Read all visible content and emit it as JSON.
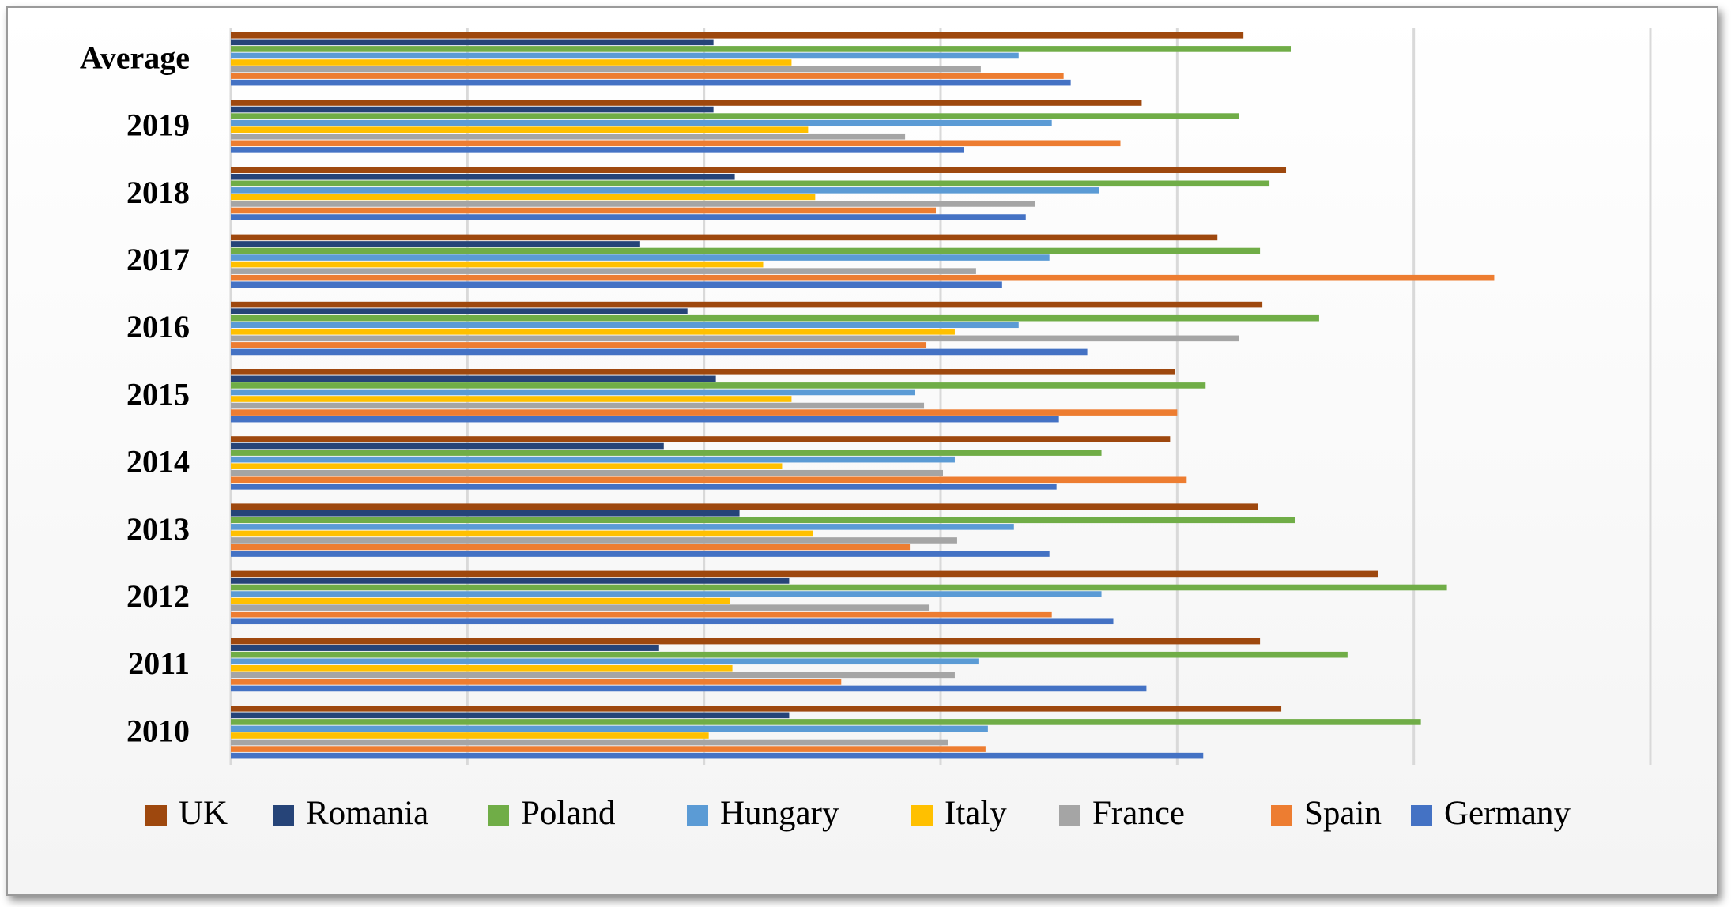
{
  "chart_data": {
    "type": "bar",
    "orientation": "horizontal",
    "title": "",
    "xlabel": "",
    "ylabel": "",
    "xlim": [
      0,
      6
    ],
    "grid": true,
    "legend_position": "bottom",
    "categories": [
      "Average",
      "2019",
      "2018",
      "2017",
      "2016",
      "2015",
      "2014",
      "2013",
      "2012",
      "2011",
      "2010"
    ],
    "series": [
      {
        "name": "UK",
        "color": "#9E480E",
        "values": [
          4.28,
          3.85,
          4.46,
          4.17,
          4.36,
          3.99,
          3.97,
          4.34,
          4.85,
          4.35,
          4.44
        ]
      },
      {
        "name": "Romania",
        "color": "#264478",
        "values": [
          2.04,
          2.04,
          2.13,
          1.73,
          1.93,
          2.05,
          1.83,
          2.15,
          2.36,
          1.81,
          2.36
        ]
      },
      {
        "name": "Poland",
        "color": "#70AD47",
        "values": [
          4.48,
          4.26,
          4.39,
          4.35,
          4.6,
          4.12,
          3.68,
          4.5,
          5.14,
          4.72,
          5.03
        ]
      },
      {
        "name": "Hungary",
        "color": "#5B9BD5",
        "values": [
          3.33,
          3.47,
          3.67,
          3.46,
          3.33,
          2.89,
          3.06,
          3.31,
          3.68,
          3.16,
          3.2
        ]
      },
      {
        "name": "Italy",
        "color": "#FFC000",
        "values": [
          2.37,
          2.44,
          2.47,
          2.25,
          3.06,
          2.37,
          2.33,
          2.46,
          2.11,
          2.12,
          2.02
        ]
      },
      {
        "name": "France",
        "color": "#A5A5A5",
        "values": [
          3.17,
          2.85,
          3.4,
          3.15,
          4.26,
          2.93,
          3.01,
          3.07,
          2.95,
          3.06,
          3.03
        ]
      },
      {
        "name": "Spain",
        "color": "#ED7D31",
        "values": [
          3.52,
          3.76,
          2.98,
          5.34,
          2.94,
          4.0,
          4.04,
          2.87,
          3.47,
          2.58,
          3.19
        ]
      },
      {
        "name": "Germany",
        "color": "#4472C4",
        "values": [
          3.55,
          3.1,
          3.36,
          3.26,
          3.62,
          3.5,
          3.49,
          3.46,
          3.73,
          3.87,
          4.11
        ]
      }
    ]
  }
}
